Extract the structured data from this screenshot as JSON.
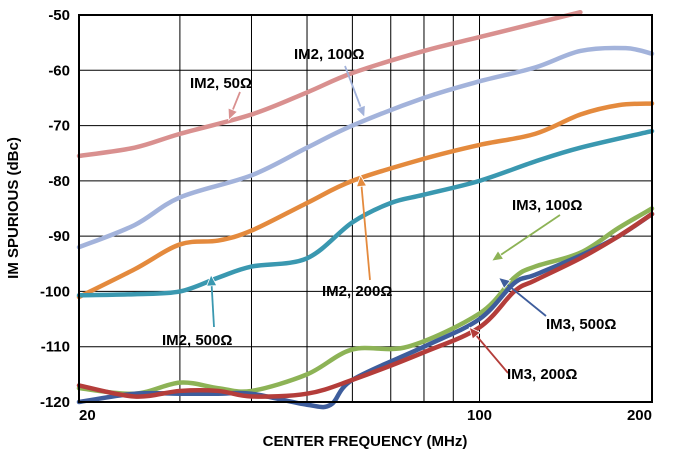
{
  "chart_data": {
    "type": "line",
    "title": "",
    "xlabel": "CENTER FREQUENCY (MHz)",
    "ylabel": "IM SPURIOUS (dBc)",
    "xscale": "log",
    "xlim": [
      20,
      200
    ],
    "ylim": [
      -120,
      -50
    ],
    "grid": true,
    "legend": "none (series labelled by callouts)",
    "x_tick_labels": [
      "20",
      "100",
      "200"
    ],
    "y_tick_labels": [
      "-50",
      "-60",
      "-70",
      "-80",
      "-90",
      "-100",
      "-110",
      "-120"
    ],
    "series": [
      {
        "name": "IM2, 50Ω",
        "color": "#d9908f",
        "points": [
          [
            20,
            -75.5
          ],
          [
            25,
            -74
          ],
          [
            30,
            -71.5
          ],
          [
            40,
            -68
          ],
          [
            50,
            -64
          ],
          [
            60,
            -60.5
          ],
          [
            80,
            -56.5
          ],
          [
            100,
            -54
          ],
          [
            125,
            -51.5
          ],
          [
            150,
            -49.5
          ]
        ]
      },
      {
        "name": "IM2, 100Ω",
        "color": "#a3b3db",
        "points": [
          [
            20,
            -92
          ],
          [
            25,
            -88
          ],
          [
            30,
            -83
          ],
          [
            40,
            -79
          ],
          [
            50,
            -74
          ],
          [
            60,
            -70
          ],
          [
            80,
            -65
          ],
          [
            100,
            -62
          ],
          [
            125,
            -59.5
          ],
          [
            150,
            -56.5
          ],
          [
            180,
            -56
          ],
          [
            200,
            -57
          ]
        ]
      },
      {
        "name": "IM2, 200Ω",
        "color": "#e48a3d",
        "points": [
          [
            20,
            -101
          ],
          [
            25,
            -96
          ],
          [
            30,
            -91.5
          ],
          [
            35,
            -90.8
          ],
          [
            40,
            -89
          ],
          [
            50,
            -84
          ],
          [
            60,
            -80
          ],
          [
            80,
            -76
          ],
          [
            100,
            -73.5
          ],
          [
            125,
            -71.5
          ],
          [
            150,
            -68
          ],
          [
            175,
            -66.3
          ],
          [
            200,
            -66
          ]
        ]
      },
      {
        "name": "IM2, 500Ω",
        "color": "#3a98b0",
        "points": [
          [
            20,
            -100.7
          ],
          [
            25,
            -100.5
          ],
          [
            30,
            -100
          ],
          [
            35,
            -97.5
          ],
          [
            40,
            -95.5
          ],
          [
            50,
            -94
          ],
          [
            60,
            -87.5
          ],
          [
            70,
            -84
          ],
          [
            80,
            -82.5
          ],
          [
            100,
            -80
          ],
          [
            125,
            -76.5
          ],
          [
            150,
            -74
          ],
          [
            200,
            -71
          ]
        ]
      },
      {
        "name": "IM3, 100Ω",
        "color": "#8db356",
        "points": [
          [
            20,
            -117.5
          ],
          [
            25,
            -118.5
          ],
          [
            30,
            -116.5
          ],
          [
            35,
            -117.5
          ],
          [
            40,
            -118
          ],
          [
            50,
            -115
          ],
          [
            60,
            -110.5
          ],
          [
            75,
            -110
          ],
          [
            100,
            -104
          ],
          [
            115,
            -97.5
          ],
          [
            125,
            -95.5
          ],
          [
            150,
            -93
          ],
          [
            175,
            -88.5
          ],
          [
            200,
            -85
          ]
        ]
      },
      {
        "name": "IM3, 500Ω",
        "color": "#3e5d9c",
        "points": [
          [
            20,
            -120
          ],
          [
            25,
            -118.5
          ],
          [
            30,
            -118.5
          ],
          [
            35,
            -118.5
          ],
          [
            40,
            -118.5
          ],
          [
            50,
            -120.5
          ],
          [
            55,
            -120.5
          ],
          [
            60,
            -116
          ],
          [
            80,
            -110
          ],
          [
            100,
            -105
          ],
          [
            115,
            -98.5
          ],
          [
            125,
            -97
          ],
          [
            150,
            -93.5
          ],
          [
            175,
            -90
          ],
          [
            200,
            -86
          ]
        ]
      },
      {
        "name": "IM3, 200Ω",
        "color": "#b43d3a",
        "points": [
          [
            20,
            -117
          ],
          [
            25,
            -119
          ],
          [
            30,
            -118
          ],
          [
            35,
            -118
          ],
          [
            40,
            -119
          ],
          [
            50,
            -118.5
          ],
          [
            60,
            -116
          ],
          [
            80,
            -111
          ],
          [
            100,
            -106.5
          ],
          [
            115,
            -100
          ],
          [
            125,
            -98
          ],
          [
            150,
            -94
          ],
          [
            175,
            -90
          ],
          [
            200,
            -86
          ]
        ]
      }
    ],
    "annotations": [
      {
        "text": "IM2, 50Ω",
        "color": "#d9908f",
        "target": [
          36.5,
          -69
        ]
      },
      {
        "text": "IM2, 100Ω",
        "color": "#a3b3db",
        "target": [
          63,
          -68.5
        ]
      },
      {
        "text": "IM2, 200Ω",
        "color": "#e48a3d",
        "target": [
          62,
          -79
        ]
      },
      {
        "text": "IM2, 500Ω",
        "color": "#3a98b0",
        "target": [
          34,
          -97
        ]
      },
      {
        "text": "IM3, 100Ω",
        "color": "#8db356",
        "target": [
          105,
          -94.5
        ]
      },
      {
        "text": "IM3, 500Ω",
        "color": "#3e5d9c",
        "target": [
          108,
          -97.5
        ]
      },
      {
        "text": "IM3, 200Ω",
        "color": "#b43d3a",
        "target": [
          96,
          -106.5
        ]
      }
    ]
  }
}
